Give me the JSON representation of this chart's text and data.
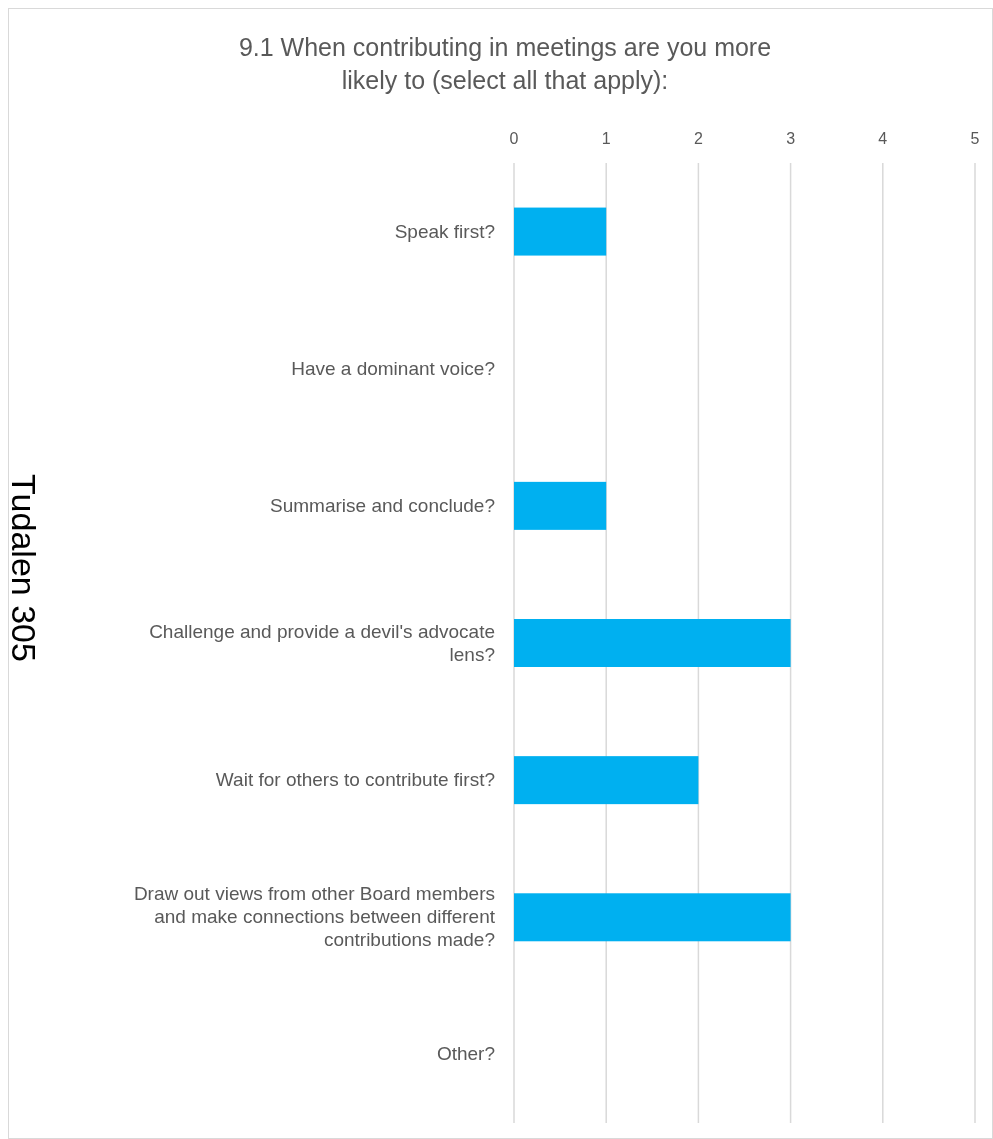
{
  "chart_data": {
    "type": "bar",
    "orientation": "horizontal",
    "title": "9.1 When contributing in meetings are you more likely to (select all that apply):",
    "categories": [
      "Speak first?",
      "Have a dominant voice?",
      "Summarise and conclude?",
      "Challenge and provide a devil's advocate lens?",
      "Wait for others to contribute first?",
      "Draw out views from other Board members and make connections between different contributions made?",
      "Other?"
    ],
    "values": [
      1,
      0,
      1,
      3,
      2,
      3,
      0
    ],
    "color": "#00b0f0",
    "xlim": [
      0,
      5
    ],
    "xticks": [
      0,
      1,
      2,
      3,
      4,
      5
    ],
    "grid": "x",
    "annotations": [
      "Tudalen 305"
    ]
  }
}
